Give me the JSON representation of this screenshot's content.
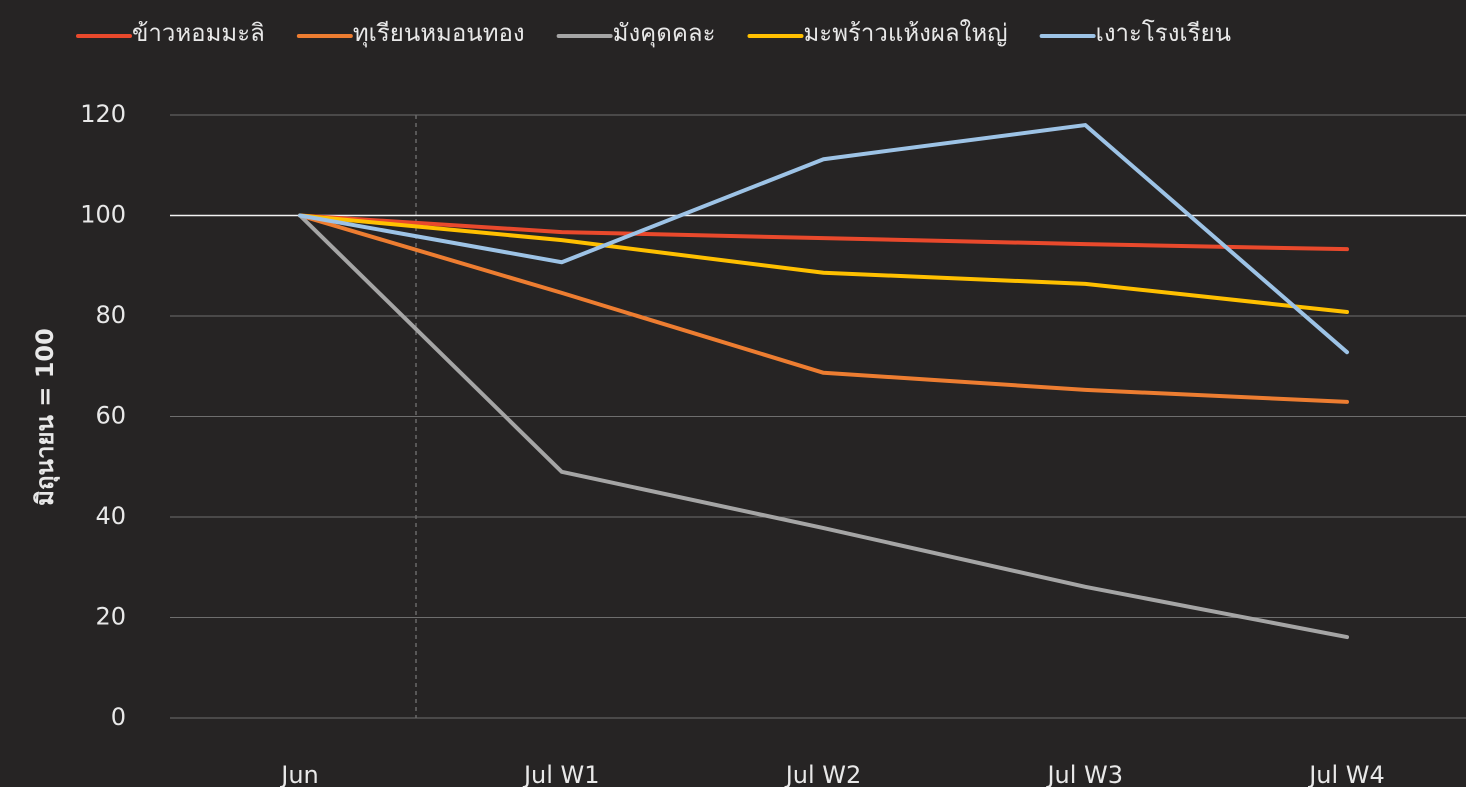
{
  "chart_data": {
    "type": "line",
    "y_label": "มิถุนายน = 100",
    "categories": [
      "Jun",
      "Jul W1",
      "Jul W2",
      "Jul W3",
      "Jul W4"
    ],
    "series": [
      {
        "name": "ข้าวหอมมะลิ",
        "color": "#e9492c",
        "values": [
          100,
          96.7,
          95.5,
          94.3,
          93.3
        ]
      },
      {
        "name": "ทุเรียนหมอนทอง",
        "color": "#ed7d31",
        "values": [
          100,
          84.6,
          68.7,
          65.3,
          62.9
        ]
      },
      {
        "name": "มังคุดคละ",
        "color": "#a5a5a5",
        "values": [
          100,
          49,
          37.8,
          26.1,
          16.1
        ]
      },
      {
        "name": "มะพร้าวแห้งผลใหญ่",
        "color": "#ffc000",
        "values": [
          100,
          95.1,
          88.6,
          86.4,
          80.8
        ]
      },
      {
        "name": "เงาะโรงเรียน",
        "color": "#9dc3e6",
        "values": [
          100,
          90.7,
          111.2,
          118,
          72.8
        ]
      }
    ],
    "ylim": [
      0,
      120
    ],
    "yticks": [
      0,
      20,
      40,
      60,
      80,
      100,
      120
    ],
    "grid": true,
    "reference_line": {
      "value": 100
    },
    "legend": "top"
  }
}
